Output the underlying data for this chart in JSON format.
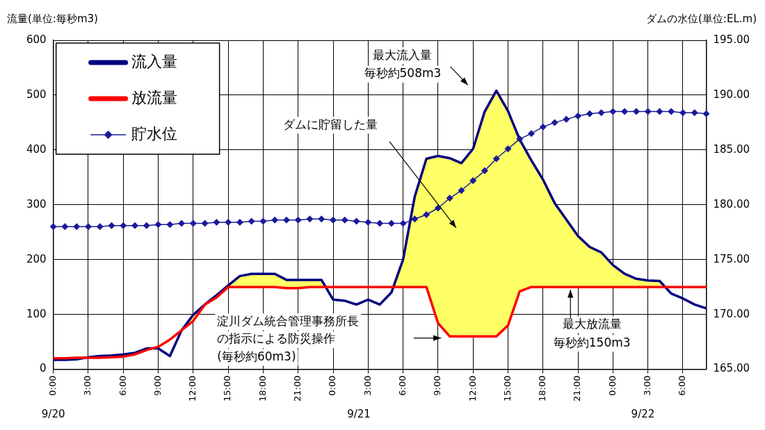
{
  "chart_data": {
    "type": "line",
    "ylabel": "流量(単位:毎秒m3)",
    "y2label": "ダムの水位(単位:EL.m)",
    "categories": [
      "0:00",
      null,
      null,
      "3:00",
      null,
      null,
      "6:00",
      null,
      null,
      "9:00",
      null,
      null,
      "12:00",
      null,
      null,
      "15:00",
      null,
      null,
      "18:00",
      null,
      null,
      "21:00",
      null,
      null,
      "0:00",
      null,
      null,
      "3:00",
      null,
      null,
      "6:00",
      null,
      null,
      "9:00",
      null,
      null,
      "12:00",
      null,
      null,
      "15:00",
      null,
      null,
      "18:00",
      null,
      null,
      "21:00",
      null,
      null,
      "0:00",
      null,
      null,
      "3:00",
      null,
      null,
      "6:00",
      null,
      null
    ],
    "ylim": [
      0,
      600
    ],
    "yticks": [
      0,
      100,
      200,
      300,
      400,
      500,
      600
    ],
    "y2lim": [
      165,
      195
    ],
    "y2ticks": [
      {
        "value": 165,
        "label": "165.00"
      },
      {
        "value": 170,
        "label": "170.00"
      },
      {
        "value": 175,
        "label": "175.00"
      },
      {
        "value": 180,
        "label": "180.00"
      },
      {
        "value": 185,
        "label": "185.00"
      },
      {
        "value": 190,
        "label": "190.00"
      },
      {
        "value": 195,
        "label": "195.00"
      }
    ],
    "grid": true,
    "legend": "top left",
    "series": [
      {
        "name": "流入量",
        "color": "#000080",
        "marker": "none",
        "values": [
          17,
          17,
          18,
          22,
          24,
          25,
          27,
          30,
          38,
          38,
          24,
          71,
          99,
          118,
          135,
          153,
          170,
          174,
          174,
          174,
          163,
          163,
          163,
          163,
          127,
          125,
          118,
          127,
          118,
          140,
          200,
          315,
          384,
          389,
          385,
          376,
          402,
          470,
          508,
          471,
          419,
          381,
          346,
          303,
          273,
          243,
          223,
          213,
          190,
          174,
          165,
          162,
          161,
          138,
          129,
          118,
          111
        ],
        "lower": [
          20,
          20,
          21,
          21,
          21,
          22,
          23,
          27,
          35,
          41,
          54,
          71,
          88,
          118,
          131,
          150,
          150,
          150,
          150,
          150,
          148,
          148,
          150,
          150,
          150,
          150,
          150,
          150,
          150,
          150,
          150,
          150,
          150,
          84,
          60,
          60,
          60,
          60,
          60,
          80,
          142,
          150,
          150,
          150,
          150,
          150,
          150,
          150,
          150,
          150,
          150,
          150,
          150,
          150,
          150,
          150,
          150
        ],
        "upper": [
          17,
          17,
          18,
          22,
          24,
          25,
          27,
          30,
          38,
          38,
          24,
          71,
          99,
          118,
          135,
          153,
          170,
          174,
          174,
          174,
          163,
          163,
          163,
          163,
          127,
          125,
          118,
          127,
          118,
          140,
          200,
          315,
          384,
          389,
          385,
          376,
          402,
          470,
          508,
          471,
          419,
          381,
          346,
          303,
          273,
          243,
          223,
          213,
          190,
          174,
          165,
          162,
          161,
          138,
          129,
          118,
          111
        ]
      },
      {
        "name": "放流量",
        "color": "#ff0000",
        "marker": "none",
        "values": [
          20,
          20,
          21,
          21,
          21,
          22,
          23,
          27,
          35,
          41,
          54,
          71,
          88,
          118,
          131,
          150,
          150,
          150,
          150,
          150,
          148,
          148,
          150,
          150,
          150,
          150,
          150,
          150,
          150,
          150,
          150,
          150,
          150,
          84,
          60,
          60,
          60,
          60,
          60,
          80,
          142,
          150,
          150,
          150,
          150,
          150,
          150,
          150,
          150,
          150,
          150,
          150,
          150,
          150,
          150,
          150,
          150
        ]
      },
      {
        "name": "貯水位",
        "axis": "y2",
        "color": "#1a1a99",
        "marker": "diamond",
        "values": [
          178.0,
          178.0,
          178.0,
          178.0,
          178.0,
          178.1,
          178.1,
          178.1,
          178.1,
          178.2,
          178.2,
          178.3,
          178.3,
          178.3,
          178.4,
          178.4,
          178.4,
          178.5,
          178.5,
          178.6,
          178.6,
          178.6,
          178.7,
          178.7,
          178.6,
          178.6,
          178.5,
          178.4,
          178.3,
          178.3,
          178.3,
          178.7,
          179.1,
          179.7,
          180.6,
          181.3,
          182.2,
          183.1,
          184.2,
          185.1,
          186.0,
          186.5,
          187.1,
          187.5,
          187.8,
          188.1,
          188.3,
          188.4,
          188.5,
          188.5,
          188.5,
          188.5,
          188.5,
          188.5,
          188.4,
          188.4,
          188.3
        ]
      }
    ],
    "annotations": [
      "最大流入量",
      "毎秒約508m3",
      "ダムに貯留した量",
      "淀川ダム統合管理事務所長",
      "の指示による防災操作",
      "(毎秒約60m3)",
      {
        "text": "最大放流量",
        "y": 150
      },
      "毎秒約150m3",
      "9/20",
      "9/21",
      "9/22"
    ]
  }
}
